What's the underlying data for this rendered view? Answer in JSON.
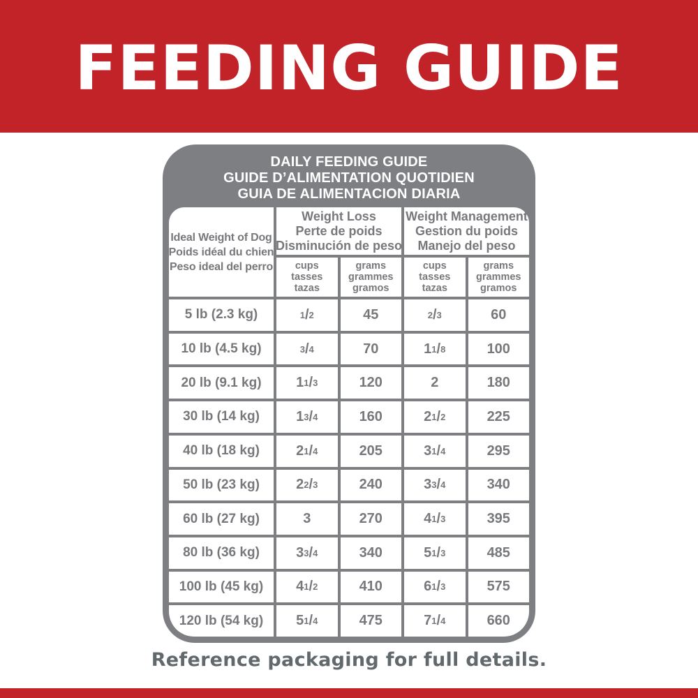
{
  "banner": {
    "title": "FEEDING GUIDE"
  },
  "card": {
    "title_lines": [
      "DAILY FEEDING GUIDE",
      "GUIDE D’ALIMENTATION QUOTIDIEN",
      "GUIA DE ALIMENTACION DIARIA"
    ],
    "weight_col_lines": [
      "Ideal Weight of Dog",
      "Poids idéal du chien",
      "Peso ideal del perro"
    ],
    "groups": [
      {
        "lines": [
          "Weight Loss",
          "Perte de poids",
          "Disminución de peso"
        ]
      },
      {
        "lines": [
          "Weight Management",
          "Gestion du poids",
          "Manejo del peso"
        ]
      }
    ],
    "units": {
      "cups_lines": [
        "cups",
        "tasses",
        "tazas"
      ],
      "grams_lines": [
        "grams",
        "grammes",
        "gramos"
      ]
    },
    "rows": [
      {
        "weight": "5 lb (2.3 kg)",
        "wl_cups": "1/2",
        "wl_grams": "45",
        "wm_cups": "2/3",
        "wm_grams": "60"
      },
      {
        "weight": "10 lb (4.5 kg)",
        "wl_cups": "3/4",
        "wl_grams": "70",
        "wm_cups": "1 1/8",
        "wm_grams": "100"
      },
      {
        "weight": "20 lb (9.1 kg)",
        "wl_cups": "1 1/3",
        "wl_grams": "120",
        "wm_cups": "2",
        "wm_grams": "180"
      },
      {
        "weight": "30 lb (14 kg)",
        "wl_cups": "1 3/4",
        "wl_grams": "160",
        "wm_cups": "2 1/2",
        "wm_grams": "225"
      },
      {
        "weight": "40 lb (18 kg)",
        "wl_cups": "2 1/4",
        "wl_grams": "205",
        "wm_cups": "3 1/4",
        "wm_grams": "295"
      },
      {
        "weight": "50 lb (23 kg)",
        "wl_cups": "2 2/3",
        "wl_grams": "240",
        "wm_cups": "3 3/4",
        "wm_grams": "340"
      },
      {
        "weight": "60 lb (27 kg)",
        "wl_cups": "3",
        "wl_grams": "270",
        "wm_cups": "4 1/3",
        "wm_grams": "395"
      },
      {
        "weight": "80 lb (36 kg)",
        "wl_cups": "3 3/4",
        "wl_grams": "340",
        "wm_cups": "5 1/3",
        "wm_grams": "485"
      },
      {
        "weight": "100 lb (45 kg)",
        "wl_cups": "4 1/2",
        "wl_grams": "410",
        "wm_cups": "6 1/3",
        "wm_grams": "575"
      },
      {
        "weight": "120 lb (54 kg)",
        "wl_cups": "5 1/4",
        "wl_grams": "475",
        "wm_cups": "7 1/4",
        "wm_grams": "660"
      }
    ]
  },
  "footer": {
    "note": "Reference packaging for full details."
  },
  "colors": {
    "red": "#C22328",
    "gray": "#7E7F82",
    "table_text": "#77787B",
    "footer_text": "#62696D",
    "cell_bg": "#FFFFFF"
  }
}
